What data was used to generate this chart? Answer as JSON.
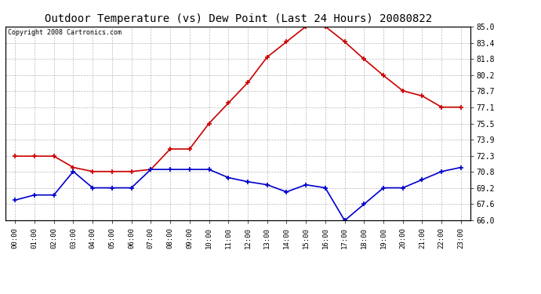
{
  "title": "Outdoor Temperature (vs) Dew Point (Last 24 Hours) 20080822",
  "copyright": "Copyright 2008 Cartronics.com",
  "x_labels": [
    "00:00",
    "01:00",
    "02:00",
    "03:00",
    "04:00",
    "05:00",
    "06:00",
    "07:00",
    "08:00",
    "09:00",
    "10:00",
    "11:00",
    "12:00",
    "13:00",
    "14:00",
    "15:00",
    "16:00",
    "17:00",
    "18:00",
    "19:00",
    "20:00",
    "21:00",
    "22:00",
    "23:00"
  ],
  "temp_data": [
    72.3,
    72.3,
    72.3,
    71.2,
    70.8,
    70.8,
    70.8,
    71.0,
    73.0,
    73.0,
    75.5,
    77.5,
    79.5,
    82.0,
    83.5,
    85.0,
    85.0,
    83.5,
    81.8,
    80.2,
    78.7,
    78.2,
    77.1,
    77.1
  ],
  "dew_data": [
    68.0,
    68.5,
    68.5,
    70.8,
    69.2,
    69.2,
    69.2,
    71.0,
    71.0,
    71.0,
    71.0,
    70.2,
    69.8,
    69.5,
    68.8,
    69.5,
    69.2,
    66.0,
    67.6,
    69.2,
    69.2,
    70.0,
    70.8,
    71.2
  ],
  "temp_color": "#cc0000",
  "dew_color": "#0000cc",
  "ylim_min": 66.0,
  "ylim_max": 85.0,
  "yticks": [
    85.0,
    83.4,
    81.8,
    80.2,
    78.7,
    77.1,
    75.5,
    73.9,
    72.3,
    70.8,
    69.2,
    67.6,
    66.0
  ],
  "bg_color": "#ffffff",
  "plot_bg_color": "#ffffff",
  "grid_color": "#aaaaaa",
  "title_fontsize": 10,
  "copyright_fontsize": 6,
  "tick_fontsize": 6.5,
  "ytick_fontsize": 7
}
